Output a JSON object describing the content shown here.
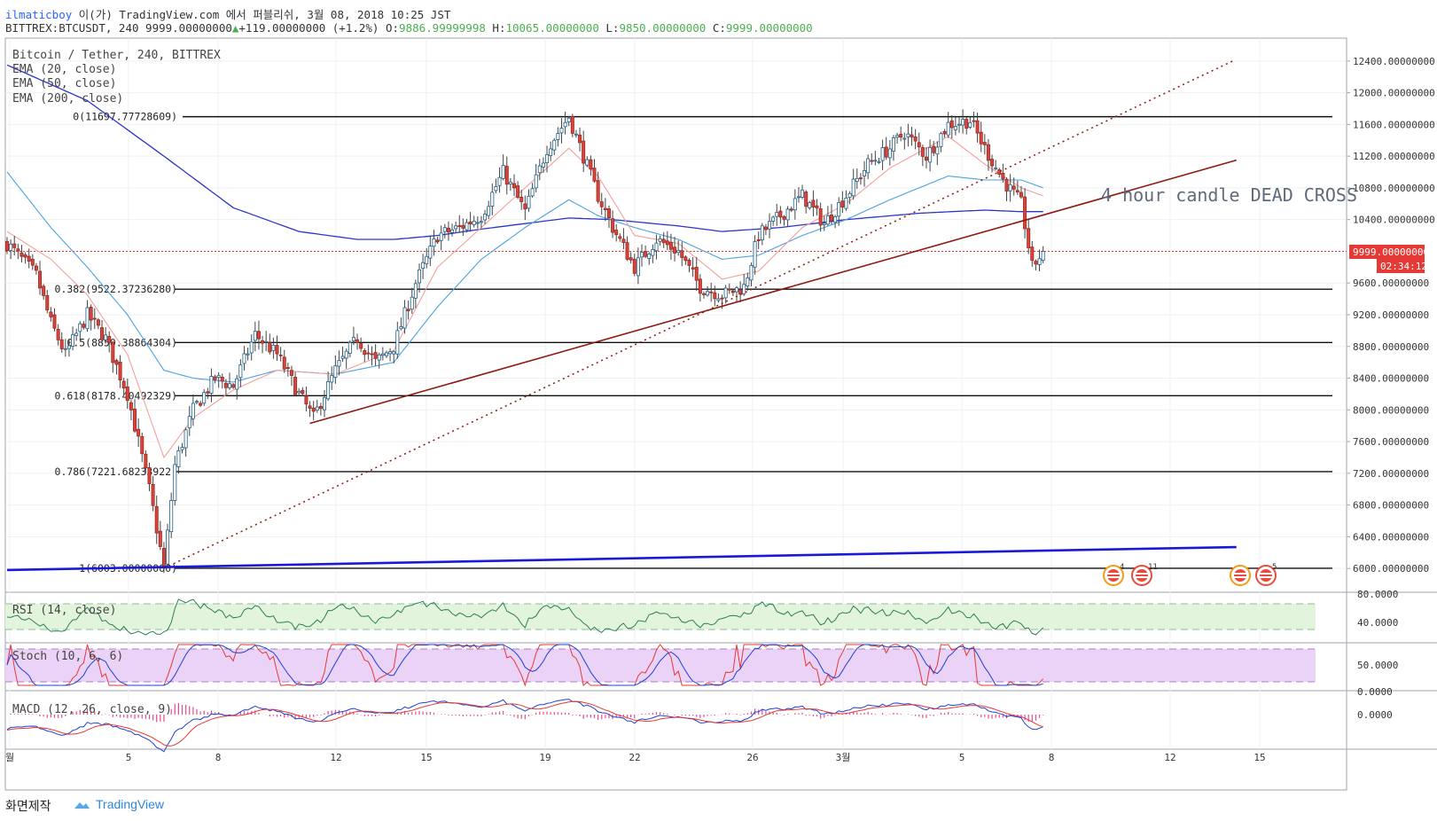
{
  "header": {
    "user": "ilmaticboy",
    "published": "이(가) TradingView.com 에서 퍼블리쉬, 3월 08, 2018 10:25 JST",
    "symbol_line": "BITTREX:BTCUSDT, 240 9999.00000000",
    "change": "+119.00000000 (+1.2%)",
    "o_label": "O:",
    "o_value": "9886.99999998",
    "h_label": "H:",
    "h_value": "10065.00000000",
    "l_label": "L:",
    "l_value": "9850.00000000",
    "c_label": "C:",
    "c_value": "9999.00000000"
  },
  "legend": {
    "symbol": "Bitcoin / Tether, 240, BITTREX",
    "ema20": "EMA (20, close)",
    "ema50": "EMA (50, close)",
    "ema200": "EMA (200, close)"
  },
  "annotation": "4 hour candle DEAD CROSS",
  "price_axis": {
    "ticks": [
      "12400.00000000",
      "12000.00000000",
      "11600.00000000",
      "11200.00000000",
      "10800.00000000",
      "10400.00000000",
      "9600.00000000",
      "9200.00000000",
      "8800.00000000",
      "8400.00000000",
      "8000.00000000",
      "7600.00000000",
      "7200.00000000",
      "6800.00000000",
      "6400.00000000",
      "6000.00000000"
    ],
    "last_price": "9999.00000000",
    "countdown": "02:34:12"
  },
  "indicators": {
    "rsi": {
      "label": "RSI (14, close)",
      "ticks": [
        "80.0000",
        "40.0000"
      ]
    },
    "stoch": {
      "label": "Stoch (10, 6, 6)",
      "ticks": [
        "50.0000",
        "0.0000"
      ]
    },
    "macd": {
      "label": "MACD (12, 26, close, 9)",
      "ticks": [
        "0.0000"
      ]
    }
  },
  "time_axis": [
    "월",
    "5",
    "8",
    "12",
    "15",
    "19",
    "22",
    "26",
    "3월",
    "5",
    "8",
    "12",
    "15"
  ],
  "events": [
    "4",
    "11",
    "5"
  ],
  "footer": {
    "label": "화면제작",
    "brand": "TradingView"
  },
  "colors": {
    "up": "#26a69a",
    "down": "#e53935",
    "ema20": "#f4a09a",
    "ema50": "#4aa3df",
    "ema200": "#2b35c8",
    "trend": "#8b1a10",
    "support": "#1a1ad6"
  },
  "chart_data": {
    "type": "candlestick",
    "y_range": [
      5700,
      12700
    ],
    "fib_levels": [
      {
        "label": "0(11697.77728609)",
        "value": 11697.77728609
      },
      {
        "label": "0.382(9522.37236280)",
        "value": 9522.3723628
      },
      {
        "label": "0.5(8850.38864304)",
        "value": 8850.38864304
      },
      {
        "label": "0.618(8178.40492329)",
        "value": 8178.40492329
      },
      {
        "label": "0.786(7221.68233922)",
        "value": 7221.68233922
      },
      {
        "label": "1(6003.00000000)",
        "value": 6003
      }
    ],
    "price_keyframes": [
      [
        0,
        10100
      ],
      [
        8,
        9700
      ],
      [
        12,
        9100
      ],
      [
        16,
        8700
      ],
      [
        22,
        9200
      ],
      [
        27,
        8900
      ],
      [
        33,
        8200
      ],
      [
        39,
        7000
      ],
      [
        43,
        6003
      ],
      [
        46,
        7300
      ],
      [
        51,
        8000
      ],
      [
        57,
        8400
      ],
      [
        62,
        8300
      ],
      [
        68,
        8950
      ],
      [
        74,
        8700
      ],
      [
        80,
        8200
      ],
      [
        84,
        7900
      ],
      [
        90,
        8500
      ],
      [
        96,
        8900
      ],
      [
        101,
        8600
      ],
      [
        106,
        8800
      ],
      [
        112,
        9600
      ],
      [
        118,
        10200
      ],
      [
        124,
        10300
      ],
      [
        130,
        10450
      ],
      [
        136,
        11000
      ],
      [
        142,
        10500
      ],
      [
        148,
        11300
      ],
      [
        154,
        11697
      ],
      [
        158,
        11200
      ],
      [
        162,
        10700
      ],
      [
        166,
        10300
      ],
      [
        172,
        9800
      ],
      [
        178,
        10150
      ],
      [
        184,
        10000
      ],
      [
        190,
        9550
      ],
      [
        196,
        9450
      ],
      [
        202,
        9550
      ],
      [
        206,
        10200
      ],
      [
        212,
        10450
      ],
      [
        218,
        10700
      ],
      [
        224,
        10350
      ],
      [
        230,
        10700
      ],
      [
        236,
        11100
      ],
      [
        242,
        11300
      ],
      [
        246,
        11500
      ],
      [
        252,
        11200
      ],
      [
        258,
        11600
      ],
      [
        264,
        11650
      ],
      [
        268,
        11300
      ],
      [
        273,
        10900
      ],
      [
        278,
        10600
      ],
      [
        281,
        9800
      ],
      [
        284,
        9999
      ]
    ],
    "ema20_keyframes": [
      [
        0,
        10250
      ],
      [
        12,
        9900
      ],
      [
        22,
        9450
      ],
      [
        33,
        8700
      ],
      [
        43,
        7400
      ],
      [
        51,
        7900
      ],
      [
        62,
        8250
      ],
      [
        74,
        8500
      ],
      [
        90,
        8450
      ],
      [
        106,
        8750
      ],
      [
        118,
        9800
      ],
      [
        130,
        10300
      ],
      [
        142,
        10800
      ],
      [
        154,
        11300
      ],
      [
        162,
        10950
      ],
      [
        172,
        10200
      ],
      [
        184,
        10100
      ],
      [
        196,
        9650
      ],
      [
        206,
        9750
      ],
      [
        218,
        10300
      ],
      [
        230,
        10600
      ],
      [
        242,
        11050
      ],
      [
        258,
        11450
      ],
      [
        268,
        11100
      ],
      [
        278,
        10800
      ],
      [
        284,
        10700
      ]
    ],
    "ema50_keyframes": [
      [
        0,
        11000
      ],
      [
        12,
        10300
      ],
      [
        22,
        9800
      ],
      [
        33,
        9200
      ],
      [
        43,
        8500
      ],
      [
        51,
        8400
      ],
      [
        62,
        8350
      ],
      [
        74,
        8500
      ],
      [
        90,
        8450
      ],
      [
        106,
        8600
      ],
      [
        118,
        9300
      ],
      [
        130,
        9900
      ],
      [
        142,
        10300
      ],
      [
        154,
        10650
      ],
      [
        162,
        10450
      ],
      [
        172,
        10300
      ],
      [
        184,
        10150
      ],
      [
        196,
        9900
      ],
      [
        206,
        9950
      ],
      [
        218,
        10200
      ],
      [
        230,
        10400
      ],
      [
        242,
        10650
      ],
      [
        258,
        10950
      ],
      [
        268,
        10900
      ],
      [
        278,
        10900
      ],
      [
        284,
        10800
      ]
    ],
    "ema200_keyframes": [
      [
        0,
        12350
      ],
      [
        22,
        11900
      ],
      [
        43,
        11200
      ],
      [
        62,
        10550
      ],
      [
        80,
        10250
      ],
      [
        96,
        10150
      ],
      [
        106,
        10150
      ],
      [
        118,
        10200
      ],
      [
        130,
        10280
      ],
      [
        142,
        10350
      ],
      [
        154,
        10420
      ],
      [
        166,
        10400
      ],
      [
        184,
        10320
      ],
      [
        196,
        10250
      ],
      [
        212,
        10300
      ],
      [
        230,
        10400
      ],
      [
        250,
        10480
      ],
      [
        268,
        10520
      ],
      [
        278,
        10500
      ],
      [
        284,
        10500
      ]
    ],
    "trendlines": [
      {
        "style": "dotted",
        "from": [
          43,
          6003
        ],
        "to": [
          336,
          12400
        ]
      },
      {
        "style": "solid",
        "from": [
          83,
          7830
        ],
        "to": [
          337,
          11150
        ]
      },
      {
        "style": "solid-support",
        "from": [
          0,
          5980
        ],
        "to": [
          337,
          6270
        ]
      }
    ],
    "last_bar": {
      "open": 9886.99999998,
      "high": 10065,
      "low": 9850,
      "close": 9999
    }
  }
}
